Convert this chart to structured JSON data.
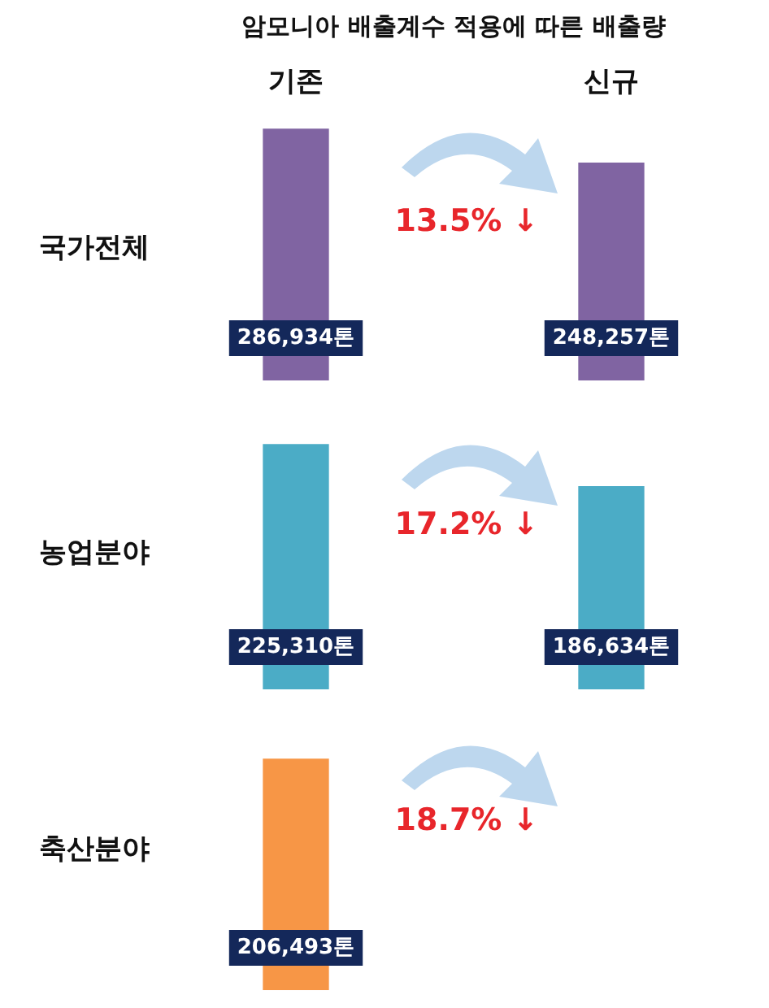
{
  "chart_data": [
    {
      "type": "bar",
      "title": "암모니아 배출계수 적용에 따른 배출량",
      "ylabel": "국가전체",
      "categories": [
        "기존",
        "신규"
      ],
      "series": [
        {
          "color": "#8064a2",
          "values": [
            286934,
            248257
          ],
          "value_labels": [
            "286,934톤",
            "248,257톤"
          ]
        }
      ],
      "annotations": [
        "13.5% ↓"
      ]
    },
    {
      "type": "bar",
      "ylabel": "농업분야",
      "categories": [
        null,
        null
      ],
      "series": [
        {
          "color": "#4bacc6",
          "values": [
            225310,
            186634
          ],
          "value_labels": [
            "225,310톤",
            "186,634톤"
          ]
        }
      ],
      "annotations": [
        "17.2% ↓"
      ]
    },
    {
      "type": "bar",
      "ylabel": "축산분야",
      "categories": [
        null,
        null
      ],
      "series": [
        {
          "color": "#f79646",
          "values": [
            206493,
            null
          ],
          "value_labels": [
            "206,493톤",
            null
          ]
        }
      ],
      "annotations": [
        "18.7% ↓"
      ]
    }
  ]
}
